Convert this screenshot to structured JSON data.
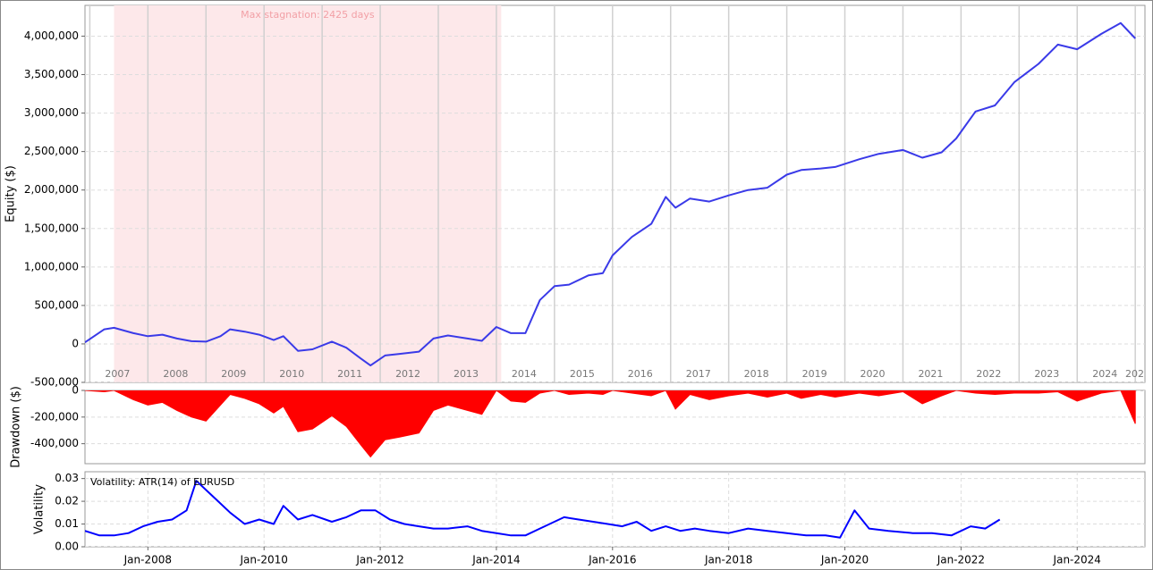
{
  "chart_data": [
    {
      "type": "line",
      "ylabel": "Equity ($)",
      "color": "#3a3ae8",
      "xlim": [
        "2006-12",
        "2025-03"
      ],
      "ylim": [
        -500000,
        4400000
      ],
      "grid": true,
      "yticks": [
        {
          "value": -500000,
          "label": "-500,000"
        },
        0,
        {
          "value": 500000,
          "label": "500,000"
        },
        {
          "value": 1000000,
          "label": "1,000,000"
        },
        {
          "value": 1500000,
          "label": "1,500,000"
        },
        {
          "value": 2000000,
          "label": "2,000,000"
        },
        {
          "value": 2500000,
          "label": "2,500,000"
        },
        {
          "value": 3000000,
          "label": "3,000,000"
        },
        {
          "value": 3500000,
          "label": "3,500,000"
        },
        {
          "value": 4000000,
          "label": "4,000,000"
        }
      ],
      "xticks": [
        {
          "value": "2007-01",
          "label": "2007"
        },
        {
          "value": "2008-01",
          "label": "2008"
        },
        {
          "value": "2009-01",
          "label": "2009"
        },
        {
          "value": "2010-01",
          "label": "2010"
        },
        {
          "value": "2011-01",
          "label": "2011"
        },
        {
          "value": "2012-01",
          "label": "2012"
        },
        {
          "value": "2013-01",
          "label": "2013"
        },
        {
          "value": "2014-01",
          "label": "2014"
        },
        {
          "value": "2015-01",
          "label": "2015"
        },
        {
          "value": "2016-01",
          "label": "2016"
        },
        {
          "value": "2017-01",
          "label": "2017"
        },
        {
          "value": "2018-01",
          "label": "2018"
        },
        {
          "value": "2019-01",
          "label": "2019"
        },
        {
          "value": "2020-01",
          "label": "2020"
        },
        {
          "value": "2021-01",
          "label": "2021"
        },
        {
          "value": "2022-01",
          "label": "2022"
        },
        {
          "value": "2023-01",
          "label": "2023"
        },
        {
          "value": "2024-01",
          "label": "2024"
        },
        {
          "value": "2025-01",
          "label": "202"
        }
      ],
      "stagnation": {
        "start": "2007-06",
        "end": "2014-02",
        "label": "Max stagnation: 2425 days"
      },
      "x": [
        "2006-12",
        "2007-04",
        "2007-06",
        "2007-10",
        "2008-01",
        "2008-04",
        "2008-07",
        "2008-10",
        "2009-01",
        "2009-04",
        "2009-06",
        "2009-09",
        "2009-12",
        "2010-03",
        "2010-05",
        "2010-08",
        "2010-11",
        "2011-03",
        "2011-06",
        "2011-09",
        "2011-11",
        "2012-02",
        "2012-05",
        "2012-09",
        "2012-12",
        "2013-03",
        "2013-07",
        "2013-10",
        "2014-01",
        "2014-04",
        "2014-07",
        "2014-10",
        "2015-01",
        "2015-04",
        "2015-08",
        "2015-11",
        "2016-01",
        "2016-05",
        "2016-09",
        "2016-12",
        "2017-02",
        "2017-05",
        "2017-09",
        "2018-01",
        "2018-05",
        "2018-09",
        "2019-01",
        "2019-04",
        "2019-08",
        "2019-11",
        "2020-04",
        "2020-08",
        "2021-01",
        "2021-05",
        "2021-09",
        "2021-12",
        "2022-04",
        "2022-08",
        "2022-12",
        "2023-05",
        "2023-09",
        "2024-01",
        "2024-06",
        "2024-10",
        "2025-01"
      ],
      "values": [
        20000,
        190000,
        210000,
        140000,
        100000,
        120000,
        70000,
        35000,
        30000,
        100000,
        190000,
        160000,
        120000,
        50000,
        100000,
        -90000,
        -70000,
        30000,
        -50000,
        -190000,
        -280000,
        -150000,
        -130000,
        -100000,
        70000,
        110000,
        70000,
        40000,
        220000,
        140000,
        140000,
        570000,
        750000,
        770000,
        890000,
        920000,
        1150000,
        1390000,
        1560000,
        1910000,
        1770000,
        1890000,
        1850000,
        1930000,
        2000000,
        2030000,
        2200000,
        2260000,
        2280000,
        2300000,
        2400000,
        2470000,
        2520000,
        2420000,
        2490000,
        2670000,
        3020000,
        3100000,
        3400000,
        3640000,
        3890000,
        3830000,
        4030000,
        4170000,
        3970000
      ]
    },
    {
      "type": "area",
      "ylabel": "Drawdown ($)",
      "color": "#ff0000",
      "xlim": [
        "2006-12",
        "2025-03"
      ],
      "ylim": [
        -550000,
        0
      ],
      "grid": true,
      "yticks": [
        {
          "value": -400000,
          "label": "-400,000"
        },
        {
          "value": -200000,
          "label": "-200,000"
        },
        0
      ],
      "x": [
        "2006-12",
        "2007-04",
        "2007-06",
        "2007-10",
        "2008-01",
        "2008-04",
        "2008-07",
        "2008-10",
        "2009-01",
        "2009-04",
        "2009-06",
        "2009-09",
        "2009-12",
        "2010-03",
        "2010-05",
        "2010-08",
        "2010-11",
        "2011-03",
        "2011-06",
        "2011-09",
        "2011-11",
        "2012-02",
        "2012-05",
        "2012-09",
        "2012-12",
        "2013-03",
        "2013-07",
        "2013-10",
        "2014-01",
        "2014-04",
        "2014-07",
        "2014-10",
        "2015-01",
        "2015-04",
        "2015-08",
        "2015-11",
        "2016-01",
        "2016-05",
        "2016-09",
        "2016-12",
        "2017-02",
        "2017-05",
        "2017-09",
        "2018-01",
        "2018-05",
        "2018-09",
        "2019-01",
        "2019-04",
        "2019-08",
        "2019-11",
        "2020-04",
        "2020-08",
        "2021-01",
        "2021-05",
        "2021-09",
        "2021-12",
        "2022-04",
        "2022-08",
        "2022-12",
        "2023-05",
        "2023-09",
        "2024-01",
        "2024-06",
        "2024-10",
        "2025-01"
      ],
      "values": [
        0,
        -10000,
        0,
        -70000,
        -110000,
        -90000,
        -150000,
        -200000,
        -230000,
        -110000,
        -30000,
        -60000,
        -100000,
        -170000,
        -120000,
        -310000,
        -290000,
        -190000,
        -270000,
        -410000,
        -500000,
        -370000,
        -350000,
        -320000,
        -150000,
        -110000,
        -150000,
        -180000,
        0,
        -80000,
        -90000,
        -20000,
        0,
        -30000,
        -20000,
        -30000,
        0,
        -20000,
        -40000,
        0,
        -140000,
        -30000,
        -70000,
        -40000,
        -20000,
        -50000,
        -20000,
        -60000,
        -30000,
        -50000,
        -20000,
        -40000,
        -10000,
        -100000,
        -40000,
        0,
        -20000,
        -30000,
        -20000,
        -20000,
        -10000,
        -80000,
        -20000,
        0,
        -250000
      ]
    },
    {
      "type": "line",
      "ylabel": "Volatility",
      "annotation": "Volatility: ATR(14) of EURUSD",
      "color": "#0000ff",
      "xlim": [
        "2006-12",
        "2025-03"
      ],
      "ylim": [
        0,
        0.033
      ],
      "grid": true,
      "yticks": [
        {
          "value": 0,
          "label": "0.00"
        },
        0.01,
        0.02,
        0.03
      ],
      "xticks": [
        {
          "value": "2008-01",
          "label": "Jan-2008"
        },
        {
          "value": "2010-01",
          "label": "Jan-2010"
        },
        {
          "value": "2012-01",
          "label": "Jan-2012"
        },
        {
          "value": "2014-01",
          "label": "Jan-2014"
        },
        {
          "value": "2016-01",
          "label": "Jan-2016"
        },
        {
          "value": "2018-01",
          "label": "Jan-2018"
        },
        {
          "value": "2020-01",
          "label": "Jan-2020"
        },
        {
          "value": "2022-01",
          "label": "Jan-2022"
        },
        {
          "value": "2024-01",
          "label": "Jan-2024"
        }
      ],
      "x": [
        "2006-12",
        "2007-03",
        "2007-06",
        "2007-09",
        "2007-12",
        "2008-03",
        "2008-06",
        "2008-09",
        "2008-11",
        "2009-01",
        "2009-03",
        "2009-06",
        "2009-09",
        "2009-12",
        "2010-03",
        "2010-05",
        "2010-08",
        "2010-11",
        "2011-03",
        "2011-06",
        "2011-09",
        "2011-12",
        "2012-03",
        "2012-06",
        "2012-09",
        "2012-12",
        "2013-03",
        "2013-07",
        "2013-10",
        "2014-01",
        "2014-04",
        "2014-07",
        "2014-10",
        "2015-03",
        "2015-06",
        "2015-09",
        "2015-12",
        "2016-03",
        "2016-06",
        "2016-09",
        "2016-12",
        "2017-03",
        "2017-06",
        "2017-09",
        "2018-01",
        "2018-05",
        "2018-09",
        "2019-01",
        "2019-05",
        "2019-09",
        "2019-12",
        "2020-03",
        "2020-06",
        "2020-10",
        "2021-03",
        "2021-07",
        "2021-11",
        "2022-03",
        "2022-06",
        "2022-09"
      ],
      "values": [
        0.007,
        0.005,
        0.005,
        0.006,
        0.009,
        0.011,
        0.012,
        0.016,
        0.029,
        0.025,
        0.021,
        0.015,
        0.01,
        0.012,
        0.01,
        0.018,
        0.012,
        0.014,
        0.011,
        0.013,
        0.016,
        0.016,
        0.012,
        0.01,
        0.009,
        0.008,
        0.008,
        0.009,
        0.007,
        0.006,
        0.005,
        0.005,
        0.008,
        0.013,
        0.012,
        0.011,
        0.01,
        0.009,
        0.011,
        0.007,
        0.009,
        0.007,
        0.008,
        0.007,
        0.006,
        0.008,
        0.007,
        0.006,
        0.005,
        0.005,
        0.004,
        0.016,
        0.008,
        0.007,
        0.006,
        0.006,
        0.005,
        0.009,
        0.008,
        0.012
      ]
    }
  ]
}
